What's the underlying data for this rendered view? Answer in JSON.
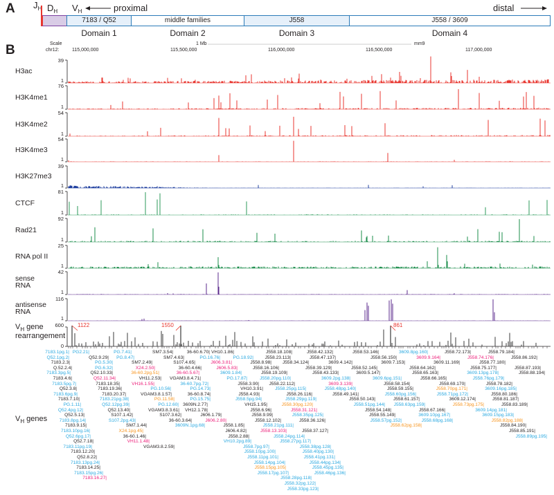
{
  "panel_a": {
    "letter": "A",
    "jh": {
      "main": "J",
      "sub": "H"
    },
    "dh": {
      "main": "D",
      "sub": "H"
    },
    "vh": {
      "main": "V",
      "sub": "H"
    },
    "proximal": "proximal",
    "distal": "distal",
    "domains": [
      {
        "box": "7183 / Q52",
        "label": "Domain 1"
      },
      {
        "box": "middle families",
        "label": "Domain 2"
      },
      {
        "box": "J558",
        "label": "Domain 3"
      },
      {
        "box": "J558 / 3609",
        "label": "Domain 4"
      }
    ],
    "colors": {
      "jh": "#e8362f",
      "dh_fill": "#d9cce6",
      "dh_border": "#7b3fa0",
      "domain_border": "#2a7ab8",
      "domain_fill": "#e6f0fa"
    }
  },
  "panel_b": {
    "letter": "B",
    "scale_label": "Scale",
    "chr_label": "chr12:",
    "scale_bar": "1 Mb",
    "assembly": "mm9",
    "positions": [
      "115,000,000",
      "115,500,000",
      "116,000,000",
      "116,500,000",
      "117,000,000"
    ],
    "tracks": [
      {
        "name": [
          "H3ac"
        ],
        "max": "39",
        "min": "1",
        "color": "#e8362f"
      },
      {
        "name": [
          "H3K4me1"
        ],
        "max": "76",
        "min": "1",
        "color": "#e8362f"
      },
      {
        "name": [
          "H3K4me2"
        ],
        "max": "54",
        "min": "1",
        "color": "#e8362f"
      },
      {
        "name": [
          "H3K4me3"
        ],
        "max": "54",
        "min": "1",
        "color": "#e8362f"
      },
      {
        "name": [
          "H3K27me3"
        ],
        "max": "39",
        "min": "1",
        "color": "#1f3f9f"
      },
      {
        "name": [
          "CTCF"
        ],
        "max": "81",
        "min": "1",
        "color": "#2b9a5a"
      },
      {
        "name": [
          "Rad21"
        ],
        "max": "92",
        "min": "1",
        "color": "#1a8c4a"
      },
      {
        "name": [
          "RNA pol II"
        ],
        "max": "25",
        "min": "1",
        "color": "#1a8c4a"
      },
      {
        "name": [
          "sense",
          "RNA"
        ],
        "max": "42",
        "min": "1",
        "color": "#5b2a8c"
      },
      {
        "name": [
          "antisense",
          "RNA"
        ],
        "max": "116",
        "min": "1",
        "color": "#5b2a8c"
      }
    ],
    "rearrangement": {
      "label_line1": {
        "main": "V",
        "sub": "H",
        "rest": " gene"
      },
      "label_line2": "rearrangement",
      "max": "600",
      "min": "0",
      "truncated_values": [
        "1122",
        "1550",
        "861"
      ],
      "color": "#3a3a3a",
      "note_color": "#e8362f"
    },
    "vh_genes": {
      "label": {
        "main": "V",
        "sub": "H",
        "rest": " genes"
      },
      "legend_colors": {
        "k": "#231f20",
        "b": "#29a8e0",
        "o": "#f7941d",
        "m": "#ec1c78"
      },
      "rows": [
        [
          [
            "7183.1pg.1",
            "b"
          ],
          [
            "PG2.21",
            "b"
          ],
          [
            "PG.7.41",
            "b"
          ],
          [
            "SM7.3.54",
            "k"
          ],
          [
            "36-60.6.70",
            "k"
          ],
          [
            "VH10.1.86",
            "k"
          ],
          [
            "J558.18.108",
            "k"
          ],
          [
            "J558.42.132",
            "k"
          ],
          [
            "J558.53.146",
            "k"
          ],
          [
            "3609.8pg.160",
            "b"
          ],
          [
            "J558.72.173",
            "k"
          ],
          [
            "J558.79.184",
            "k"
          ]
        ],
        [
          [
            "Q52.1pg.2",
            "b"
          ],
          [
            "Q52.9.29",
            "k"
          ],
          [
            "PG.8.47",
            "b"
          ],
          [
            "SM7.4.63",
            "k"
          ],
          [
            "PG.16.76",
            "b"
          ],
          [
            "PG.18.92",
            "b"
          ],
          [
            "J558.23.113",
            "k"
          ],
          [
            "J558.47.137",
            "k"
          ],
          [
            "J558.56.150",
            "k"
          ],
          [
            "3609.9.164",
            "m"
          ],
          [
            "J558.74.176",
            "m"
          ],
          [
            "J558.86.192",
            "k"
          ]
        ],
        [
          [
            "7183.2.3",
            "k"
          ],
          [
            "PG.5.30",
            "b"
          ],
          [
            "SM7.2.49",
            "k"
          ],
          [
            "S107.4.65",
            "k"
          ],
          [
            "J606.3.81",
            "m"
          ],
          [
            "J558.8.98",
            "k"
          ],
          [
            "J558.34.124",
            "k"
          ],
          [
            "3609.4.142",
            "k"
          ],
          [
            "3609.7.153",
            "k"
          ],
          [
            "3609.11.169",
            "k"
          ],
          [
            "J558.77.180",
            "k"
          ]
        ],
        [
          [
            "Q.52.2.4",
            "k"
          ],
          [
            "PG.6.32",
            "b"
          ],
          [
            "X24.2.50",
            "m"
          ],
          [
            "36-60.4.66",
            "k"
          ],
          [
            "J606.5.83",
            "m"
          ],
          [
            "J558.16.106",
            "k"
          ],
          [
            "J558.39.129",
            "k"
          ],
          [
            "J558.52.145",
            "k"
          ],
          [
            "J558.64.162",
            "k"
          ],
          [
            "J558.75.177",
            "k"
          ],
          [
            "J558.87.193",
            "k"
          ]
        ],
        [
          [
            "7183.3pg.5",
            "b"
          ],
          [
            "Q52.10.33",
            "k"
          ],
          [
            "36-60.2pg.51",
            "o"
          ],
          [
            "36-60.5.67",
            "m"
          ],
          [
            "3609.1.84",
            "b"
          ],
          [
            "J558.19.109",
            "k"
          ],
          [
            "J558.43.133",
            "k"
          ],
          [
            "3609.5.147",
            "k"
          ],
          [
            "J558.65.163",
            "k"
          ],
          [
            "3609.13pg.178",
            "b"
          ],
          [
            "J558.88.194",
            "k"
          ]
        ],
        [
          [
            "7183.4.6",
            "k"
          ],
          [
            "Q52.11.34",
            "m"
          ],
          [
            "VH11.2.53",
            "k"
          ],
          [
            "VGAM3.8.4.71",
            "k"
          ],
          [
            "PG.17.87",
            "b"
          ],
          [
            "J558.20pg.110",
            "b"
          ],
          [
            "3609.2pg.138",
            "b"
          ],
          [
            "3609.6pg.151",
            "b"
          ],
          [
            "J558.66.165",
            "k"
          ],
          [
            "J558.76pg.179",
            "b"
          ]
        ],
        [
          [
            "7183.5pg.7",
            "b"
          ],
          [
            "7183.18.35",
            "k"
          ],
          [
            "VH16.1.55",
            "m"
          ],
          [
            "36-60.7pg.72",
            "b"
          ],
          [
            "J558.3.90",
            "k"
          ],
          [
            "J558.22.112",
            "k"
          ],
          [
            "3609.3.139",
            "m"
          ],
          [
            "J558.58.154",
            "k"
          ],
          [
            "J558.69.170",
            "k"
          ],
          [
            "J558.78.182",
            "k"
          ]
        ],
        [
          [
            "Q52.3.8",
            "k"
          ],
          [
            "7183.19.36",
            "k"
          ],
          [
            "PG.10.56",
            "b"
          ],
          [
            "PG.14.73",
            "b"
          ],
          [
            "VH10.3.91",
            "k"
          ],
          [
            "J558.25pg.115",
            "b"
          ],
          [
            "J558.48pg.140",
            "b"
          ],
          [
            "J558.59.155",
            "k"
          ],
          [
            "J558.70pg.171",
            "o"
          ],
          [
            "3609.16pg.185",
            "b"
          ]
        ],
        [
          [
            "7183.6pg.9",
            "b"
          ],
          [
            "7183.20.37",
            "k"
          ],
          [
            "VGAM3.8.1.57",
            "k"
          ],
          [
            "36-60.8.74",
            "k"
          ],
          [
            "J558.4.93",
            "k"
          ],
          [
            "J558.26.116",
            "k"
          ],
          [
            "J558.49.141",
            "k"
          ],
          [
            "J558.60pg.156",
            "b"
          ],
          [
            "J558.71pg.172",
            "b"
          ],
          [
            "J558.80.186",
            "k"
          ]
        ],
        [
          [
            "7183.7.10",
            "k"
          ],
          [
            "7183.21pg.38",
            "b"
          ],
          [
            "PG.11.58",
            "o"
          ],
          [
            "PG.15.75",
            "b"
          ],
          [
            "J558.5pg.94",
            "b"
          ],
          [
            "J558.29pg.119",
            "b"
          ],
          [
            "J558.50.143",
            "k"
          ],
          [
            "J558.61.157",
            "k"
          ],
          [
            "3609.12.174",
            "k"
          ],
          [
            "J558.81.187",
            "k"
          ]
        ],
        [
          [
            "PG.1.11",
            "b"
          ],
          [
            "Q52.12pg.39",
            "b"
          ],
          [
            "PG.12.60",
            "b"
          ],
          [
            "3609N.2.77",
            "k"
          ],
          [
            "VH15.1.95",
            "k"
          ],
          [
            "J558.30pg.120",
            "o"
          ],
          [
            "J558.51pg.144",
            "b"
          ],
          [
            "J558.63pg.159",
            "b"
          ],
          [
            "J558.73pg.175",
            "o"
          ],
          [
            "J558.83.189",
            "k"
          ]
        ],
        [
          [
            "Q52.4pg.12",
            "b"
          ],
          [
            "Q52.13.40",
            "k"
          ],
          [
            "VGAM3.8.3.61",
            "k"
          ],
          [
            "VH12.1.78",
            "k"
          ],
          [
            "J558.6.96",
            "k"
          ],
          [
            "J558.31.121",
            "m"
          ],
          [
            "J558.54.148",
            "k"
          ],
          [
            "J558.67.166",
            "k"
          ],
          [
            "3609.14pg.181",
            "b"
          ]
        ],
        [
          [
            "Q52.5.13",
            "k"
          ],
          [
            "S107.1.42",
            "k"
          ],
          [
            "S107.3.62",
            "k"
          ],
          [
            "J606.1.79",
            "k"
          ],
          [
            "J558.9.99",
            "k"
          ],
          [
            "J558.35pg.125",
            "b"
          ],
          [
            "J558.55.149",
            "k"
          ],
          [
            "3609.10pg.167",
            "b"
          ],
          [
            "3609.15pg.183",
            "b"
          ]
        ],
        [
          [
            "7183.8pg.14",
            "b"
          ],
          [
            "S107.2pg.43",
            "b"
          ],
          [
            "36-60.3.64",
            "k"
          ],
          [
            "J606.2.80",
            "m"
          ],
          [
            "J558.12.102",
            "k"
          ],
          [
            "J558.36.126",
            "k"
          ],
          [
            "J558.57pg.152",
            "b"
          ],
          [
            "J558.68pg.168",
            "b"
          ],
          [
            "J558.82pg.188",
            "o"
          ]
        ],
        [
          [
            "7183.9.15",
            "k"
          ],
          [
            "SM7.1.44",
            "k"
          ],
          [
            "3609N.1pg.68",
            "b"
          ],
          [
            "J558.1.85",
            "k"
          ],
          [
            "J558.21pg.111",
            "b"
          ],
          [
            "J558.62pg.158",
            "o"
          ],
          [
            "J558.84.190",
            "k"
          ]
        ],
        [
          [
            "7183.10pg.16",
            "b"
          ],
          [
            "X24.1pg.45",
            "o"
          ],
          [
            "J606.4.82",
            "k"
          ],
          [
            "J558.13.103",
            "m"
          ],
          [
            "J558.37.127",
            "k"
          ],
          [
            "J558.85.191",
            "k"
          ]
        ],
        [
          [
            "Q52.6pg.17",
            "b"
          ],
          [
            "36-60.1.46",
            "k"
          ],
          [
            "J558.2.88",
            "k"
          ],
          [
            "J558.24pg.114",
            "b"
          ],
          [
            "J558.89pg.195",
            "b"
          ]
        ],
        [
          [
            "Q52.7.18",
            "k"
          ],
          [
            "VH11.1.48",
            "m"
          ],
          [
            "VH10.2pg.89",
            "b"
          ],
          [
            "J558.27pg.117",
            "b"
          ]
        ],
        [
          [
            "7183.11pg.19",
            "b"
          ],
          [
            "VGAM3.8.2.59",
            "k"
          ],
          [
            "J558.7pg.97",
            "b"
          ],
          [
            "J558.38pg.128",
            "b"
          ]
        ],
        [
          [
            "7183.12.20",
            "k"
          ],
          [
            "J558.10pg.100",
            "b"
          ],
          [
            "J558.40pg.130",
            "b"
          ]
        ],
        [
          [
            "Q52.8.22",
            "k"
          ],
          [
            "J558.11pg.101",
            "b"
          ],
          [
            "J558.41pg.131",
            "b"
          ]
        ],
        [
          [
            "7183.13pg.24",
            "b"
          ],
          [
            "J558.14pg.104",
            "b"
          ],
          [
            "J558.44pg.134",
            "b"
          ]
        ],
        [
          [
            "7183.14.25",
            "k"
          ],
          [
            "J558.15pg.105",
            "o"
          ],
          [
            "J558.45pg.135",
            "b"
          ]
        ],
        [
          [
            "7183.15pg.26",
            "b"
          ],
          [
            "J558.17pg.107",
            "b"
          ],
          [
            "J558.46pg.136",
            "b"
          ]
        ],
        [
          [
            "7183.16.27",
            "m"
          ],
          [
            "J558.28pg.118",
            "b"
          ]
        ],
        [
          [
            "J558.32pg.122",
            "b"
          ]
        ],
        [
          [
            "J558.33pg.123",
            "b"
          ]
        ]
      ]
    }
  }
}
